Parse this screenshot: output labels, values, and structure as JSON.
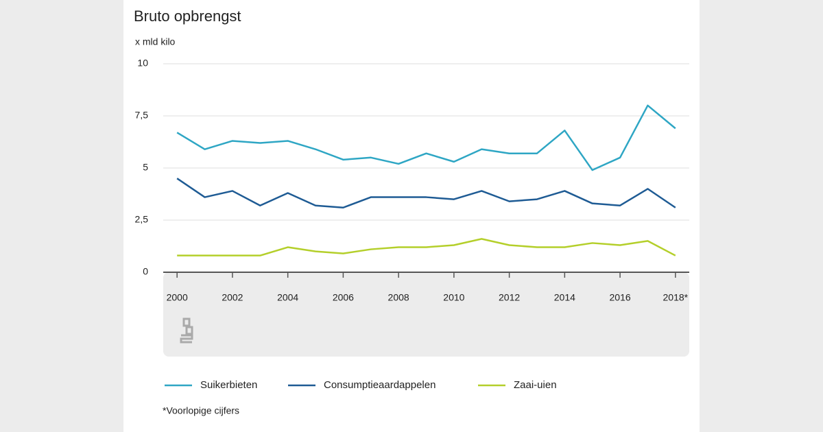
{
  "chart_data": {
    "type": "line",
    "title": "Bruto opbrengst",
    "y_label": "x mld kilo",
    "x": [
      2000,
      2001,
      2002,
      2003,
      2004,
      2005,
      2006,
      2007,
      2008,
      2009,
      2010,
      2011,
      2012,
      2013,
      2014,
      2015,
      2016,
      2017,
      2018
    ],
    "series": [
      {
        "name": "Suikerbieten",
        "color": "#2ea6c4",
        "values": [
          6.7,
          5.9,
          6.3,
          6.2,
          6.3,
          5.9,
          5.4,
          5.5,
          5.2,
          5.7,
          5.3,
          5.9,
          5.7,
          5.7,
          6.8,
          4.9,
          5.5,
          8.0,
          6.9
        ]
      },
      {
        "name": "Consumptieaardappelen",
        "color": "#1e5b94",
        "values": [
          4.5,
          3.6,
          3.9,
          3.2,
          3.8,
          3.2,
          3.1,
          3.6,
          3.6,
          3.6,
          3.5,
          3.9,
          3.4,
          3.5,
          3.9,
          3.3,
          3.2,
          4.0,
          3.1
        ]
      },
      {
        "name": "Zaai-uien",
        "color": "#b4cf2a",
        "values": [
          0.8,
          0.8,
          0.8,
          0.8,
          1.2,
          1.0,
          0.9,
          1.1,
          1.2,
          1.2,
          1.3,
          1.6,
          1.3,
          1.2,
          1.2,
          1.4,
          1.3,
          1.5,
          0.8
        ]
      }
    ],
    "xlim": [
      1999.5,
      2018.5
    ],
    "xticks": [
      2000,
      2002,
      2004,
      2006,
      2008,
      2010,
      2012,
      2014,
      2016,
      {
        "value": 2018,
        "label": "2018*"
      }
    ],
    "ylim": [
      0,
      10
    ],
    "yticks": [
      0,
      {
        "value": 2.5,
        "label": "2,5"
      },
      5,
      {
        "value": 7.5,
        "label": "7,5"
      },
      10
    ],
    "grid": true,
    "legend": "bottom",
    "note": "*Voorlopige cijfers"
  }
}
